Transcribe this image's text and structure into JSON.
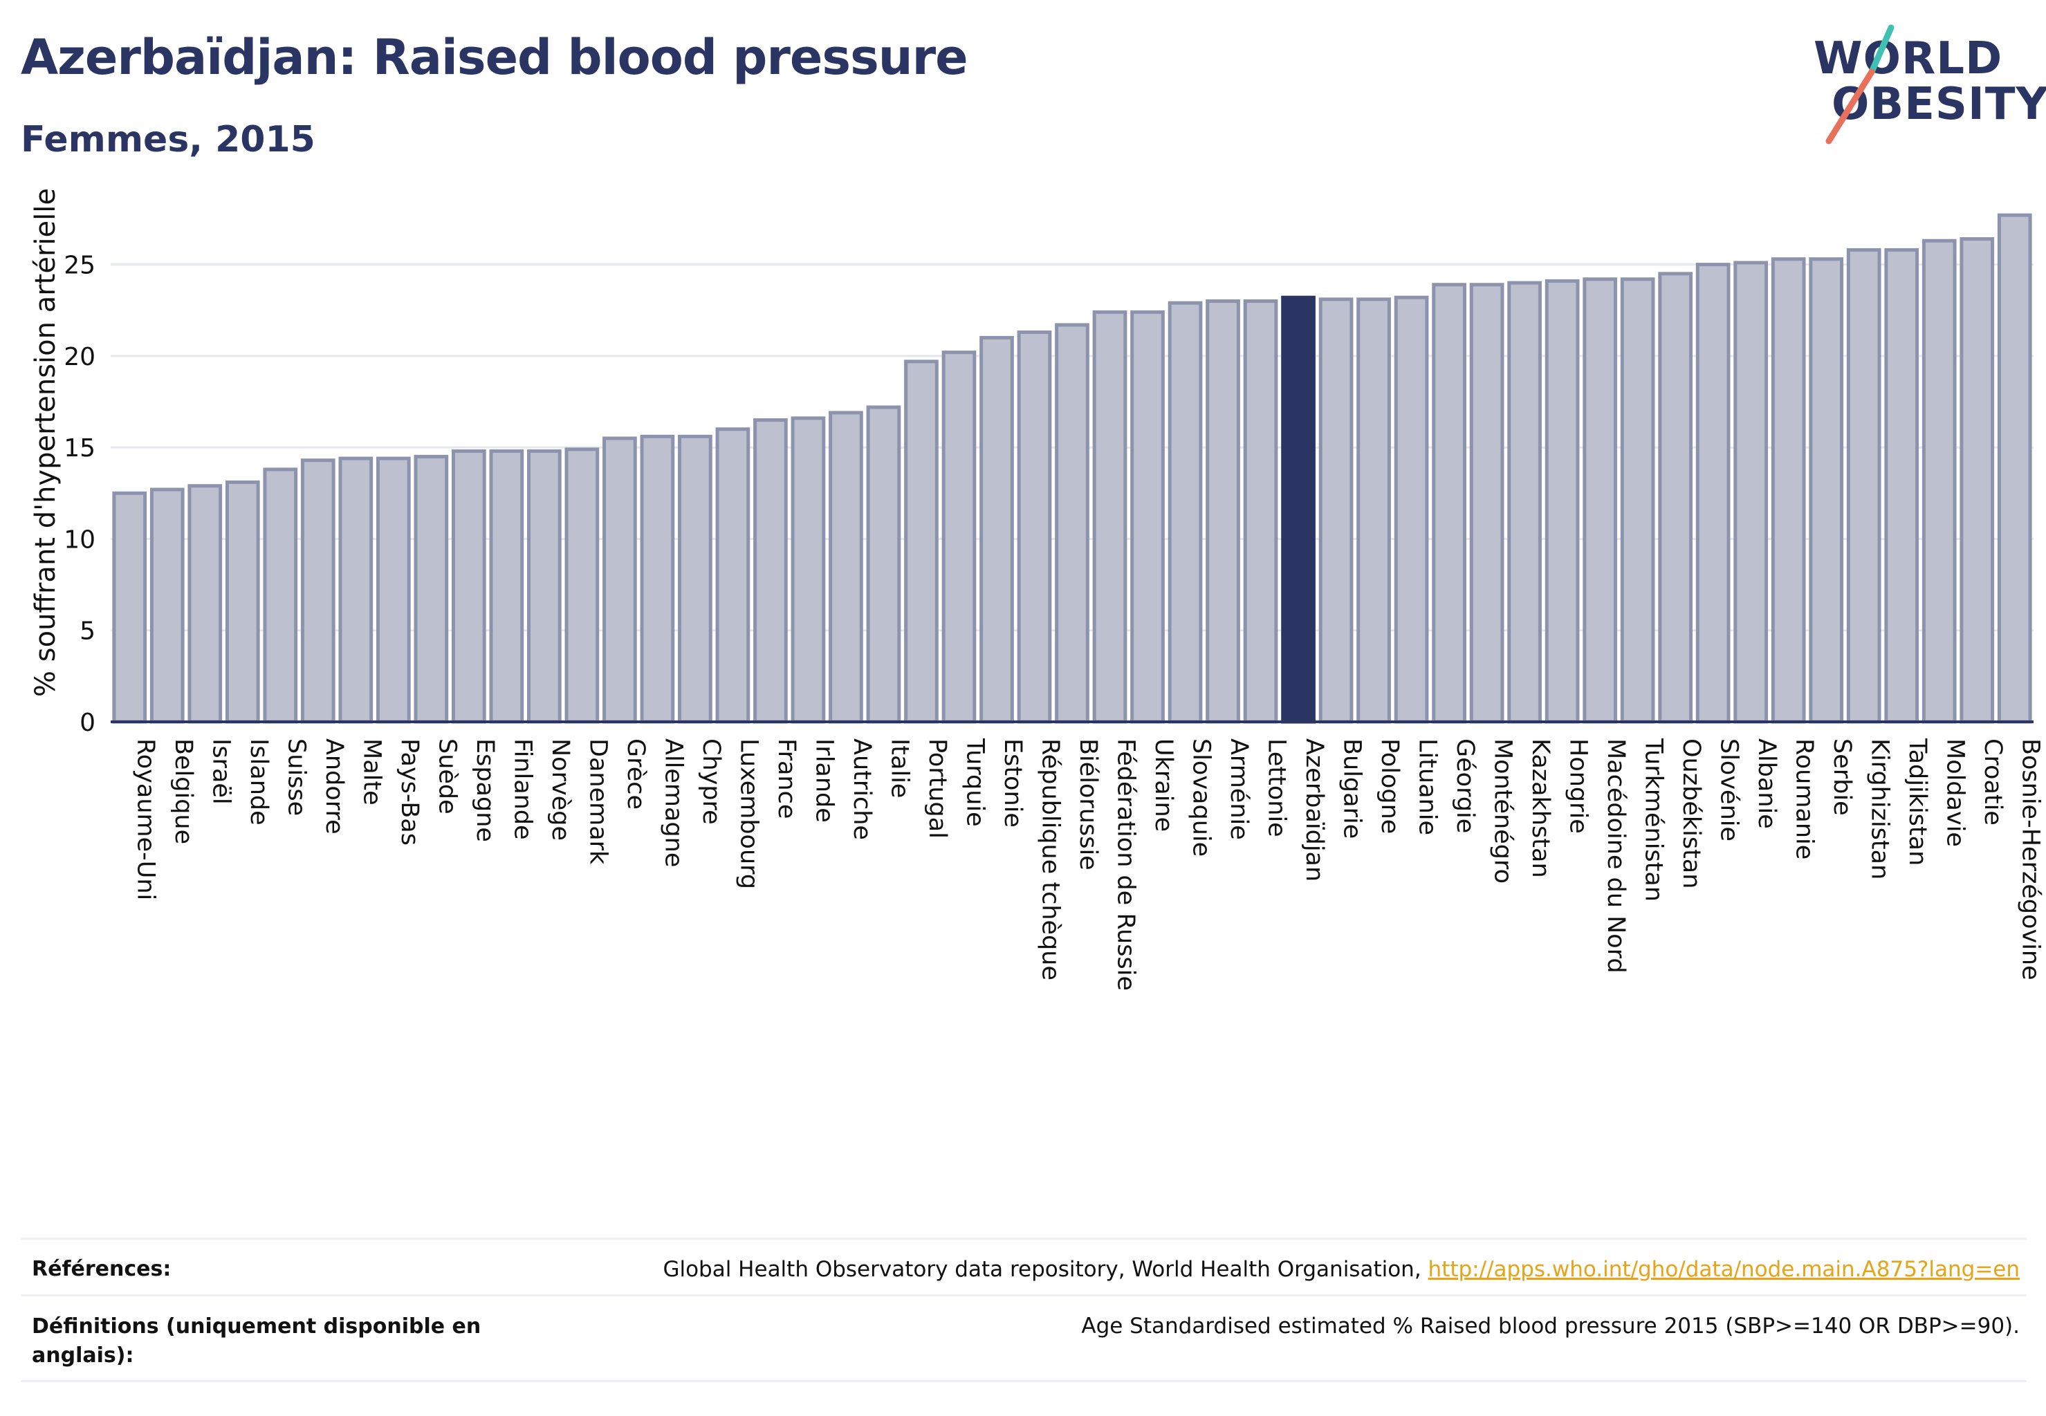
{
  "header": {
    "title": "Azerbaïdjan: Raised blood pressure",
    "subtitle": "Femmes, 2015"
  },
  "logo": {
    "line1": "WORLD",
    "line2": "OBESITY",
    "slash_colors": [
      "#3ec1b3",
      "#e9705a"
    ]
  },
  "colors": {
    "bar": "#bcc0cf",
    "bar_border": "#8d93ac",
    "highlight": "#2a3563",
    "grid": "#e6e8ef",
    "axis": "#2a3563"
  },
  "chart_data": {
    "type": "bar",
    "ylabel": "% souffrant d'hypertension artérielle",
    "ylim": [
      0,
      28.5
    ],
    "yticks": [
      0,
      5,
      10,
      15,
      20,
      25
    ],
    "grid": true,
    "highlight": "Azerbaïdjan",
    "categories": [
      "Royaume-Uni",
      "Belgique",
      "Israël",
      "Islande",
      "Suisse",
      "Andorre",
      "Malte",
      "Pays-Bas",
      "Suède",
      "Espagne",
      "Finlande",
      "Norvège",
      "Danemark",
      "Grèce",
      "Allemagne",
      "Chypre",
      "Luxembourg",
      "France",
      "Irlande",
      "Autriche",
      "Italie",
      "Portugal",
      "Turquie",
      "Estonie",
      "République tchèque",
      "Biélorussie",
      "Fédération de Russie",
      "Ukraine",
      "Slovaquie",
      "Arménie",
      "Lettonie",
      "Azerbaïdjan",
      "Bulgarie",
      "Pologne",
      "Lituanie",
      "Géorgie",
      "Monténégro",
      "Kazakhstan",
      "Hongrie",
      "Macédoine du Nord",
      "Turkménistan",
      "Ouzbékistan",
      "Slovénie",
      "Albanie",
      "Roumanie",
      "Serbie",
      "Kirghizistan",
      "Tadjikistan",
      "Moldavie",
      "Croatie",
      "Bosnie-Herzégovine"
    ],
    "values": [
      12.5,
      12.7,
      12.9,
      13.1,
      13.8,
      14.3,
      14.4,
      14.4,
      14.5,
      14.8,
      14.8,
      14.8,
      14.9,
      15.5,
      15.6,
      15.6,
      16.0,
      16.5,
      16.6,
      16.9,
      17.2,
      19.7,
      20.2,
      21.0,
      21.3,
      21.7,
      22.4,
      22.4,
      22.9,
      23.0,
      23.0,
      23.2,
      23.1,
      23.1,
      23.2,
      23.9,
      23.9,
      24.0,
      24.1,
      24.2,
      24.2,
      24.5,
      25.0,
      25.1,
      25.3,
      25.3,
      25.8,
      25.8,
      26.3,
      26.4,
      27.7
    ]
  },
  "footer": {
    "references_label": "Références:",
    "references_text": "Global Health Observatory data repository, World Health Organisation, ",
    "references_link": "http://apps.who.int/gho/data/node.main.A875?lang=en",
    "definitions_label": "Définitions (uniquement disponible en anglais):",
    "definitions_text": "Age Standardised estimated % Raised blood pressure 2015 (SBP>=140 OR DBP>=90)."
  }
}
